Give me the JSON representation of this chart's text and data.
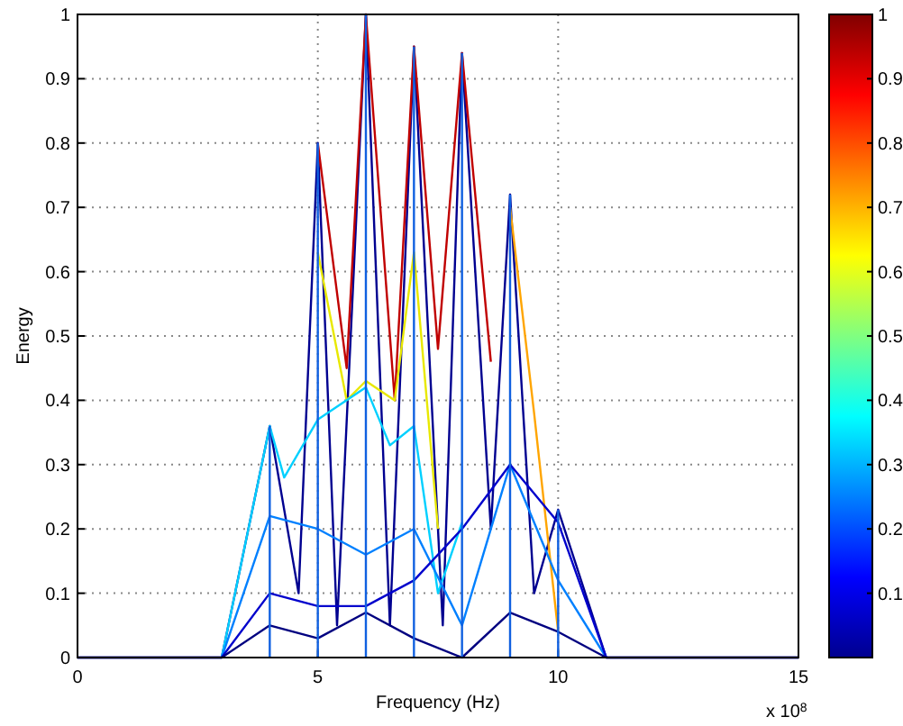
{
  "chart_data": {
    "type": "line",
    "xlabel": "Frequency (Hz)",
    "ylabel": "Energy",
    "annotations": [
      "x 10$^{8}$"
    ],
    "xlim": [
      0,
      15
    ],
    "xticks": [
      0,
      5,
      10,
      15
    ],
    "ylim": [
      0,
      1
    ],
    "yticks": [
      0,
      0.1,
      0.2,
      0.3,
      0.4,
      0.5,
      0.6,
      0.7,
      0.8,
      0.9,
      1
    ],
    "grid": true,
    "line_style": "solid",
    "clabel": null,
    "clim": [
      0,
      1
    ],
    "cticks": [
      0.1,
      0.2,
      0.3,
      0.4,
      0.5,
      0.6,
      0.7,
      0.8,
      0.9,
      1
    ],
    "series": [
      {
        "color": "#000090",
        "x": [
          0,
          3,
          4,
          4.6,
          5,
          5.4,
          6,
          6.5,
          7,
          7.6,
          8,
          8.6,
          9,
          9.5,
          10,
          11,
          15
        ],
        "values": [
          0,
          0,
          0.36,
          0.1,
          0.8,
          0.05,
          1,
          0.05,
          0.95,
          0.05,
          0.94,
          0.2,
          0.72,
          0.1,
          0.23,
          0,
          0
        ]
      },
      {
        "color": "#c00000",
        "x": [
          5,
          5.6,
          6,
          6.6,
          7,
          7.5,
          8,
          8.6
        ],
        "values": [
          0.8,
          0.45,
          1,
          0.4,
          0.95,
          0.48,
          0.94,
          0.46
        ]
      },
      {
        "color": "#ffa500",
        "x": [
          9,
          9.5,
          10
        ],
        "values": [
          0.7,
          0.38,
          0.04
        ]
      },
      {
        "color": "#e8e800",
        "x": [
          5,
          5.6,
          6,
          6.6,
          7,
          7.5
        ],
        "values": [
          0.63,
          0.4,
          0.43,
          0.4,
          0.63,
          0.2
        ]
      },
      {
        "color": "#00d0ff",
        "x": [
          3,
          4,
          4.3,
          5,
          6,
          6.5,
          7,
          7.5,
          8
        ],
        "values": [
          0,
          0.36,
          0.28,
          0.37,
          0.42,
          0.33,
          0.36,
          0.1,
          0.21
        ]
      },
      {
        "color": "#0080ff",
        "x": [
          3,
          4,
          5,
          6,
          7,
          8,
          9,
          10,
          11
        ],
        "values": [
          0,
          0.22,
          0.2,
          0.16,
          0.2,
          0.05,
          0.3,
          0.12,
          0
        ]
      },
      {
        "color": "#0000cc",
        "x": [
          3,
          4,
          5,
          6,
          7,
          8,
          9,
          10,
          11
        ],
        "values": [
          0,
          0.1,
          0.08,
          0.08,
          0.12,
          0.2,
          0.3,
          0.21,
          0
        ]
      },
      {
        "color": "#000080",
        "x": [
          0,
          3,
          4,
          5,
          6,
          7,
          8,
          9,
          10,
          11,
          15
        ],
        "values": [
          0,
          0,
          0.05,
          0.03,
          0.07,
          0.03,
          0,
          0.07,
          0.04,
          0,
          0
        ]
      },
      {
        "color": "#1060e0",
        "x": [
          4,
          4
        ],
        "values": [
          0,
          0.36
        ]
      },
      {
        "color": "#1060e0",
        "x": [
          5,
          5
        ],
        "values": [
          0,
          0.8
        ]
      },
      {
        "color": "#1060e0",
        "x": [
          6,
          6
        ],
        "values": [
          0,
          1
        ]
      },
      {
        "color": "#1060e0",
        "x": [
          7,
          7
        ],
        "values": [
          0,
          0.95
        ]
      },
      {
        "color": "#1060e0",
        "x": [
          8,
          8
        ],
        "values": [
          0,
          0.94
        ]
      },
      {
        "color": "#1060e0",
        "x": [
          9,
          9
        ],
        "values": [
          0,
          0.72
        ]
      },
      {
        "color": "#1060e0",
        "x": [
          10,
          10
        ],
        "values": [
          0,
          0.23
        ]
      }
    ]
  }
}
